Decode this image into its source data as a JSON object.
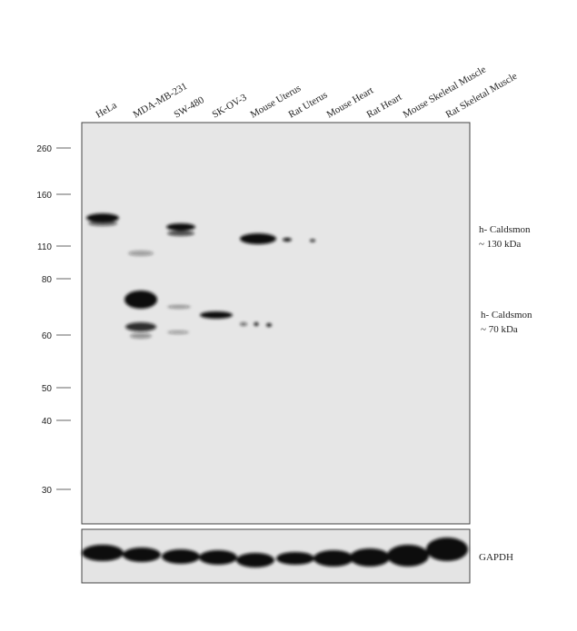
{
  "lanes": [
    "HeLa",
    "MDA-MB-231",
    "SW-480",
    "SK-OV-3",
    "Mouse Uterus",
    "Rat Uterus",
    "Mouse Heart",
    "Rat Heart",
    "Mouse Skeletal Muscle",
    "Rat Skeletal Muscle"
  ],
  "markers": [
    "260",
    "160",
    "110",
    "80",
    "60",
    "50",
    "40",
    "30"
  ],
  "annotations": [
    {
      "line1": "h- Caldsmon",
      "line2": "~ 130 kDa"
    },
    {
      "line1": "h- Caldsmon",
      "line2": "~ 70 kDa"
    }
  ],
  "loading_control": "GAPDH"
}
